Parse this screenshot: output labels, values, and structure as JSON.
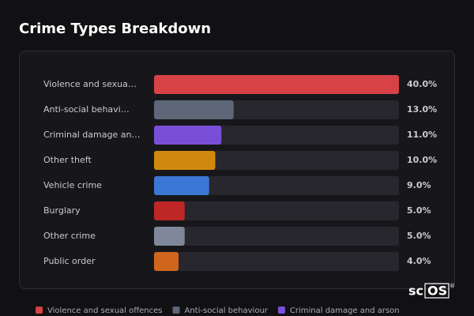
{
  "chart_data": {
    "type": "bar",
    "orientation": "horizontal",
    "title": "Crime Types Breakdown",
    "categories": [
      "Violence and sexua…",
      "Anti-social behavi…",
      "Criminal damage an…",
      "Other theft",
      "Vehicle crime",
      "Burglary",
      "Other crime",
      "Public order"
    ],
    "values": [
      40,
      13,
      11,
      10,
      9,
      5,
      5,
      4
    ],
    "value_labels": [
      "40.0%",
      "13.0%",
      "11.0%",
      "10.0%",
      "9.0%",
      "5.0%",
      "5.0%",
      "4.0%"
    ],
    "colors": [
      "#d64246",
      "#5e6778",
      "#7a4fd8",
      "#d0890f",
      "#3b77d5",
      "#bf2626",
      "#7e889a",
      "#d0661d"
    ],
    "legend": [
      {
        "name": "Violence and sexual offences",
        "color": "#d64246"
      },
      {
        "name": "Anti-social behaviour",
        "color": "#5e6778"
      },
      {
        "name": "Criminal damage and arson",
        "color": "#7a4fd8"
      }
    ]
  },
  "watermark": {
    "prefix": "sc",
    "boxed": "OS",
    "mark": "®"
  }
}
